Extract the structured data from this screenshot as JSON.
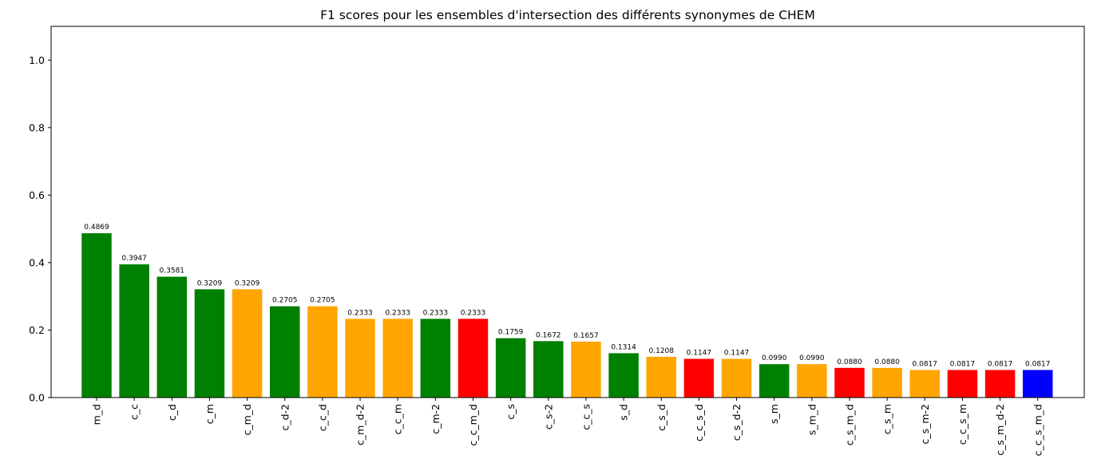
{
  "chart_data": {
    "type": "bar",
    "title": "F1 scores pour les ensembles d'intersection des différents synonymes de CHEM",
    "xlabel": "",
    "ylabel": "",
    "ylim": [
      0,
      1.1
    ],
    "yticks": [
      "0.0",
      "0.2",
      "0.4",
      "0.6",
      "0.8",
      "1.0"
    ],
    "grid": false,
    "categories": [
      "m_d",
      "c_c",
      "c_d",
      "c_m",
      "c_m_d",
      "c_d-2",
      "c_c_d",
      "c_m_d-2",
      "c_c_m",
      "c_m-2",
      "c_c_m_d",
      "c_s",
      "c_s-2",
      "c_c_s",
      "s_d",
      "c_s_d",
      "c_c_s_d",
      "c_s_d-2",
      "s_m",
      "s_m_d",
      "c_s_m_d",
      "c_s_m",
      "c_s_m-2",
      "c_c_s_m",
      "c_s_m_d-2",
      "c_c_s_m_d"
    ],
    "values": [
      0.4869,
      0.3947,
      0.3581,
      0.3209,
      0.3209,
      0.2705,
      0.2705,
      0.2333,
      0.2333,
      0.2333,
      0.2333,
      0.1759,
      0.1672,
      0.1657,
      0.1314,
      0.1208,
      0.1147,
      0.1147,
      0.099,
      0.099,
      0.088,
      0.088,
      0.0817,
      0.0817,
      0.0817,
      0.0817
    ],
    "value_labels": [
      "0.4869",
      "0.3947",
      "0.3581",
      "0.3209",
      "0.3209",
      "0.2705",
      "0.2705",
      "0.2333",
      "0.2333",
      "0.2333",
      "0.2333",
      "0.1759",
      "0.1672",
      "0.1657",
      "0.1314",
      "0.1208",
      "0.1147",
      "0.1147",
      "0.0990",
      "0.0990",
      "0.0880",
      "0.0880",
      "0.0817",
      "0.0817",
      "0.0817",
      "0.0817"
    ],
    "colors": [
      "#008000",
      "#008000",
      "#008000",
      "#008000",
      "#ffa500",
      "#008000",
      "#ffa500",
      "#ffa500",
      "#ffa500",
      "#008000",
      "#ff0000",
      "#008000",
      "#008000",
      "#ffa500",
      "#008000",
      "#ffa500",
      "#ff0000",
      "#ffa500",
      "#008000",
      "#ffa500",
      "#ff0000",
      "#ffa500",
      "#ffa500",
      "#ff0000",
      "#ff0000",
      "#0000ff"
    ]
  }
}
